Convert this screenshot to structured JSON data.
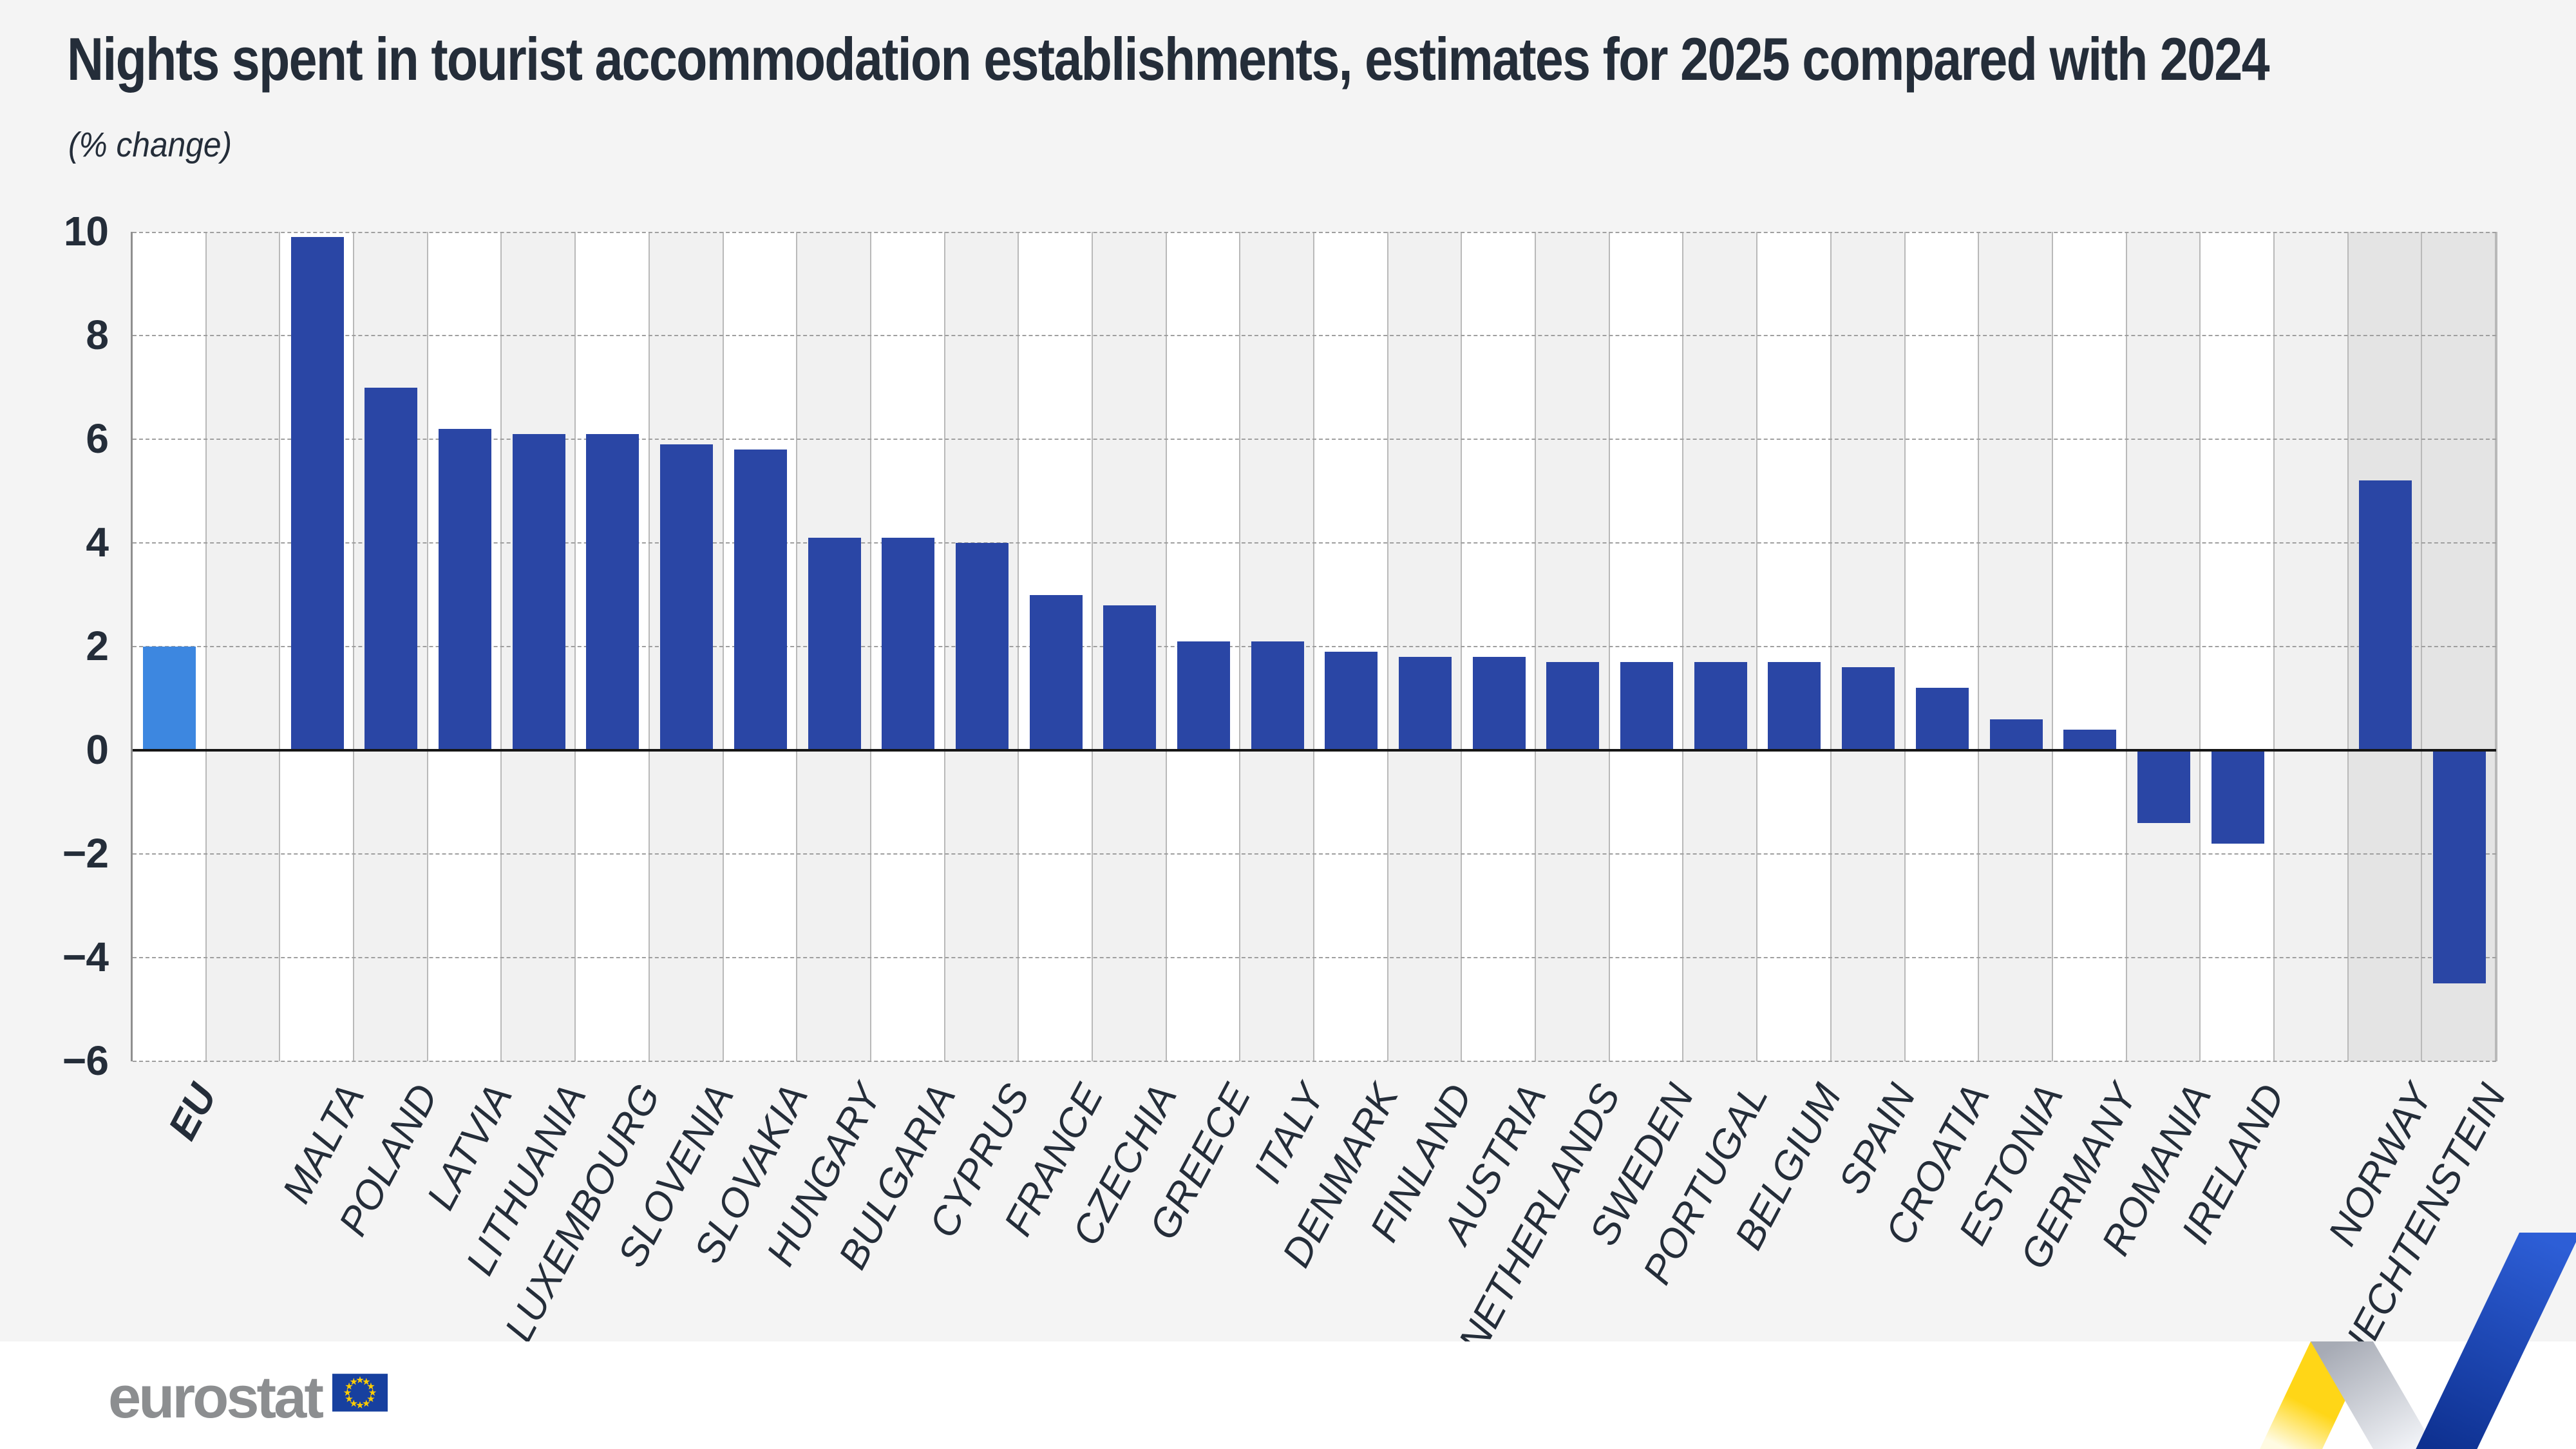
{
  "header": {
    "title": "Nights spent in tourist accommodation establishments, estimates for 2025 compared with 2024",
    "subtitle": "(% change)"
  },
  "chart_data": {
    "type": "bar",
    "title": "Nights spent in tourist accommodation establishments, estimates for 2025 compared with 2024",
    "subtitle": "(% change)",
    "xlabel": "",
    "ylabel": "",
    "ylim": [
      -6,
      10
    ],
    "y_ticks": [
      10,
      8,
      6,
      4,
      2,
      0,
      -2,
      -4,
      -6
    ],
    "grid": "horizontal-dashed",
    "legend": "none",
    "categories": [
      "EU",
      "MALTA",
      "POLAND",
      "LATVIA",
      "LITHUANIA",
      "LUXEMBOURG",
      "SLOVENIA",
      "SLOVAKIA",
      "HUNGARY",
      "BULGARIA",
      "CYPRUS",
      "FRANCE",
      "CZECHIA",
      "GREECE",
      "ITALY",
      "DENMARK",
      "FINLAND",
      "AUSTRIA",
      "NETHERLANDS",
      "SWEDEN",
      "PORTUGAL",
      "BELGIUM",
      "SPAIN",
      "CROATIA",
      "ESTONIA",
      "GERMANY",
      "ROMANIA",
      "IRELAND",
      "NORWAY",
      "LIECHTENSTEIN"
    ],
    "values": [
      2.0,
      9.9,
      7.0,
      6.2,
      6.1,
      6.1,
      5.9,
      5.8,
      4.1,
      4.1,
      4.0,
      3.0,
      2.8,
      2.1,
      2.1,
      1.9,
      1.8,
      1.8,
      1.7,
      1.7,
      1.7,
      1.7,
      1.6,
      1.2,
      0.6,
      0.4,
      -1.4,
      -1.8,
      5.2,
      -4.5
    ],
    "groups": [
      "eu-aggregate",
      "eu",
      "eu",
      "eu",
      "eu",
      "eu",
      "eu",
      "eu",
      "eu",
      "eu",
      "eu",
      "eu",
      "eu",
      "eu",
      "eu",
      "eu",
      "eu",
      "eu",
      "eu",
      "eu",
      "eu",
      "eu",
      "eu",
      "eu",
      "eu",
      "eu",
      "eu",
      "eu",
      "efta",
      "efta"
    ]
  },
  "colors": {
    "bar_default": "#2a46a5",
    "bar_eu_aggregate": "#3d87e0",
    "column_white": "#ffffff",
    "column_alt": "#f1f1f1",
    "column_efta": "#e4e4e4",
    "page_background": "#f4f4f4",
    "text": "#242d39",
    "logo_gray": "#8c8e90",
    "flag_blue": "#17409f",
    "star_yellow": "#ffcc00",
    "ribbon_yellow": "#ffd617",
    "ribbon_blue_dark": "#0d2f8e",
    "ribbon_blue_light": "#2d5ed6"
  },
  "footer": {
    "logo_text": "eurostat"
  }
}
